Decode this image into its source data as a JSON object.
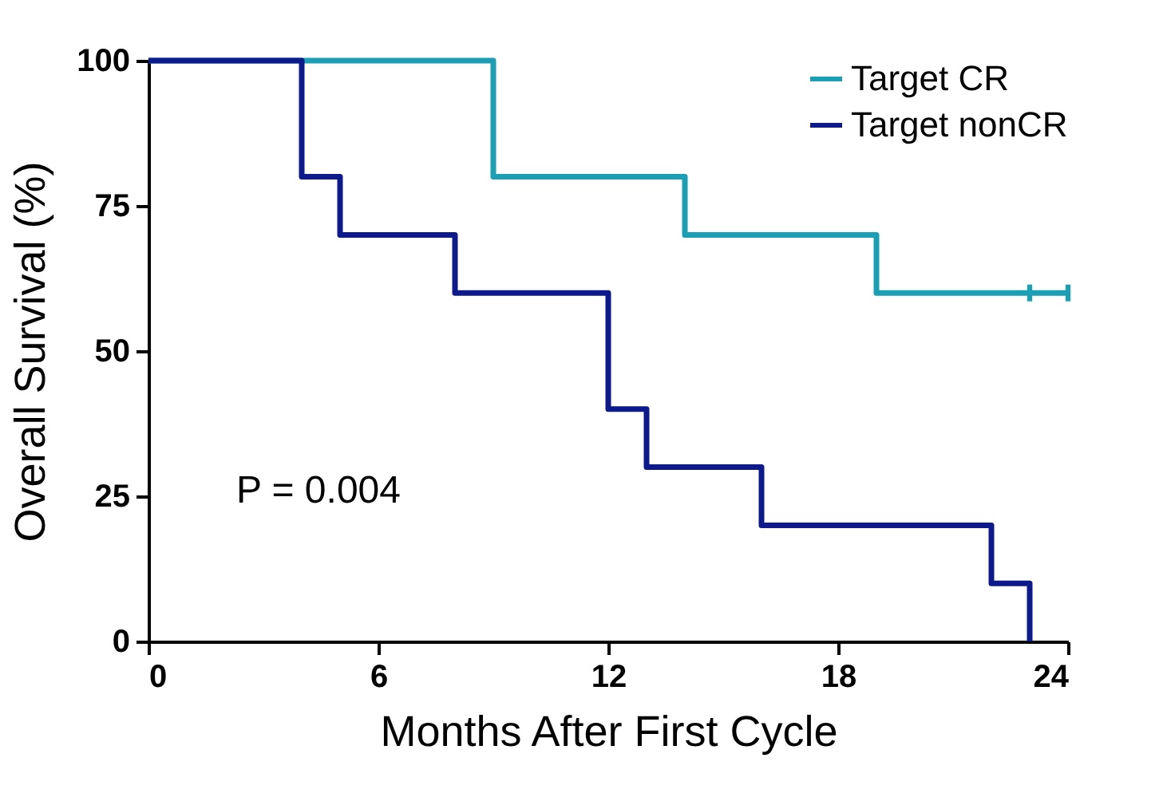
{
  "chart_data": {
    "type": "step",
    "xlabel": "Months After First Cycle",
    "ylabel": "Overall Survival (%)",
    "xlim": [
      0,
      24
    ],
    "xticks": [
      0,
      6,
      12,
      18,
      24
    ],
    "ylim": [
      0,
      100
    ],
    "yticks": [
      0,
      25,
      50,
      75,
      100
    ],
    "grid": false,
    "legend": "top right",
    "series": [
      {
        "name": "Target CR",
        "color": "#1a9fb5",
        "x": [
          0,
          9,
          14,
          19,
          24
        ],
        "values": [
          100,
          80,
          70,
          60,
          60
        ]
      },
      {
        "name": "Target nonCR",
        "color": "#0d1a8c",
        "x": [
          0,
          4,
          5,
          8,
          12,
          13,
          16,
          22,
          23
        ],
        "values": [
          100,
          80,
          70,
          60,
          40,
          30,
          20,
          10,
          0
        ]
      },
      {
        "type": "scatter",
        "marker": "square",
        "color": "#1a9fb5",
        "x": [
          23,
          24
        ],
        "values": [
          60,
          60
        ]
      }
    ],
    "annotations": [
      "P = 0.004"
    ]
  }
}
